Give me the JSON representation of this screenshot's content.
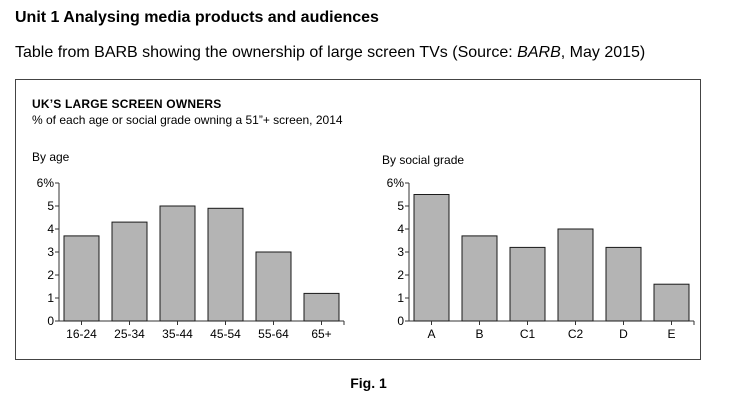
{
  "heading": "Unit 1 Analysing media products and audiences",
  "subheading": {
    "prefix": "Table from BARB showing the ownership of large screen TVs (Source: ",
    "source": "BARB",
    "suffix": ", May 2015)"
  },
  "panel": {
    "title": "UK’S LARGE SCREEN OWNERS",
    "subtitle": "% of each age or social grade owning a 51”+ screen, 2014"
  },
  "figure_caption": "Fig. 1",
  "colors": {
    "bar_fill": "#b4b4b4",
    "bar_stroke": "#1a1a1a",
    "axis": "#333333"
  },
  "chart_data": [
    {
      "type": "bar",
      "group_title": "By age",
      "categories": [
        "16-24",
        "25-34",
        "35-44",
        "45-54",
        "55-64",
        "65+"
      ],
      "values": [
        3.7,
        4.3,
        5.0,
        4.9,
        3.0,
        1.2
      ],
      "ylim": [
        0,
        6
      ],
      "yticks": [
        0,
        1,
        2,
        3,
        4,
        5,
        6
      ],
      "ytick_labels": [
        "0",
        "1",
        "2",
        "3",
        "4",
        "5",
        "6%"
      ],
      "grid": false
    },
    {
      "type": "bar",
      "group_title": "By social grade",
      "categories": [
        "A",
        "B",
        "C1",
        "C2",
        "D",
        "E"
      ],
      "values": [
        5.5,
        3.7,
        3.2,
        4.0,
        3.2,
        1.6
      ],
      "ylim": [
        0,
        6
      ],
      "yticks": [
        0,
        1,
        2,
        3,
        4,
        5,
        6
      ],
      "ytick_labels": [
        "0",
        "1",
        "2",
        "3",
        "4",
        "5",
        "6%"
      ],
      "grid": false
    }
  ]
}
